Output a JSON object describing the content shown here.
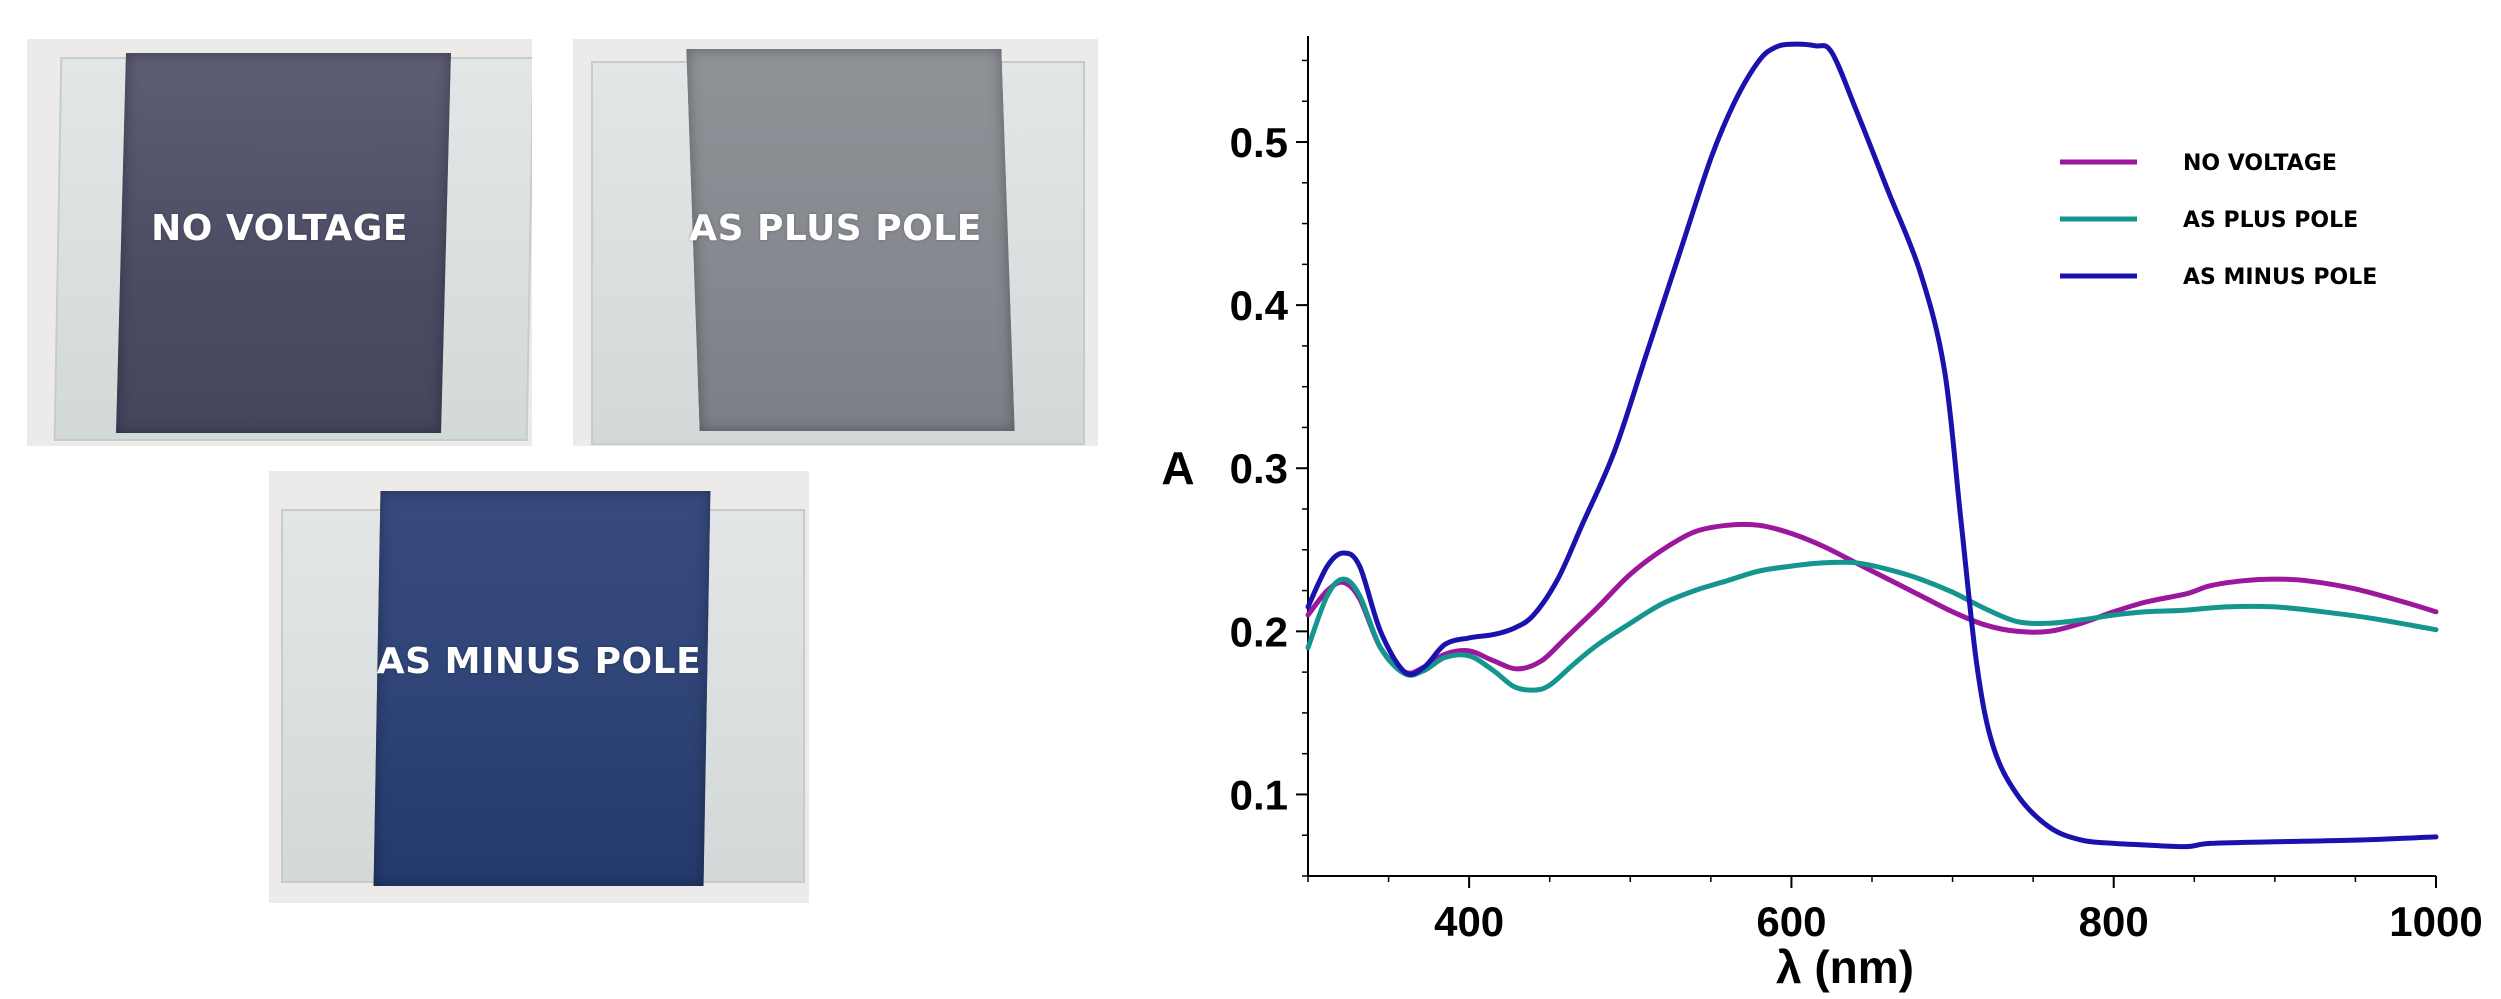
{
  "photos": [
    {
      "caption": "NO VOLTAGE",
      "cell_color": "#4f5067"
    },
    {
      "caption": "AS PLUS POLE",
      "cell_color": "#878a90"
    },
    {
      "caption": "AS MINUS POLE",
      "cell_color": "#2f4476"
    }
  ],
  "chart_data": {
    "type": "line",
    "title": "",
    "xlabel": "λ (nm)",
    "ylabel": "A",
    "xlim": [
      300,
      1000
    ],
    "ylim": [
      0.05,
      0.565
    ],
    "x_ticks": [
      400,
      600,
      800,
      1000
    ],
    "y_ticks": [
      0.1,
      0.2,
      0.3,
      0.4,
      0.5
    ],
    "x_tick_labels": [
      "400",
      "600",
      "800",
      "1000"
    ],
    "y_tick_labels": [
      "0.1",
      "0.2",
      "0.3",
      "0.4",
      "0.5"
    ],
    "grid": false,
    "legend_position": "top-right",
    "series": [
      {
        "name": "NO VOLTAGE",
        "color": "#9b179b",
        "points": [
          [
            300,
            0.21
          ],
          [
            312,
            0.225
          ],
          [
            322,
            0.23
          ],
          [
            332,
            0.22
          ],
          [
            345,
            0.19
          ],
          [
            360,
            0.175
          ],
          [
            372,
            0.178
          ],
          [
            385,
            0.186
          ],
          [
            400,
            0.188
          ],
          [
            415,
            0.182
          ],
          [
            430,
            0.177
          ],
          [
            445,
            0.182
          ],
          [
            460,
            0.196
          ],
          [
            480,
            0.215
          ],
          [
            500,
            0.235
          ],
          [
            520,
            0.25
          ],
          [
            540,
            0.261
          ],
          [
            560,
            0.265
          ],
          [
            580,
            0.265
          ],
          [
            600,
            0.26
          ],
          [
            620,
            0.252
          ],
          [
            640,
            0.242
          ],
          [
            660,
            0.232
          ],
          [
            680,
            0.222
          ],
          [
            700,
            0.212
          ],
          [
            720,
            0.204
          ],
          [
            740,
            0.2
          ],
          [
            760,
            0.2
          ],
          [
            780,
            0.205
          ],
          [
            800,
            0.212
          ],
          [
            820,
            0.218
          ],
          [
            845,
            0.223
          ],
          [
            860,
            0.228
          ],
          [
            880,
            0.231
          ],
          [
            900,
            0.232
          ],
          [
            920,
            0.231
          ],
          [
            950,
            0.226
          ],
          [
            980,
            0.218
          ],
          [
            1000,
            0.212
          ]
        ]
      },
      {
        "name": "AS PLUS POLE",
        "color": "#14958e",
        "points": [
          [
            300,
            0.19
          ],
          [
            312,
            0.222
          ],
          [
            322,
            0.232
          ],
          [
            332,
            0.222
          ],
          [
            345,
            0.19
          ],
          [
            360,
            0.174
          ],
          [
            372,
            0.176
          ],
          [
            385,
            0.184
          ],
          [
            400,
            0.185
          ],
          [
            415,
            0.176
          ],
          [
            428,
            0.166
          ],
          [
            440,
            0.164
          ],
          [
            450,
            0.167
          ],
          [
            465,
            0.18
          ],
          [
            480,
            0.192
          ],
          [
            500,
            0.205
          ],
          [
            520,
            0.217
          ],
          [
            540,
            0.225
          ],
          [
            560,
            0.231
          ],
          [
            580,
            0.237
          ],
          [
            600,
            0.24
          ],
          [
            620,
            0.242
          ],
          [
            640,
            0.242
          ],
          [
            660,
            0.238
          ],
          [
            680,
            0.232
          ],
          [
            700,
            0.224
          ],
          [
            720,
            0.214
          ],
          [
            740,
            0.206
          ],
          [
            760,
            0.205
          ],
          [
            780,
            0.207
          ],
          [
            800,
            0.21
          ],
          [
            820,
            0.212
          ],
          [
            845,
            0.213
          ],
          [
            870,
            0.215
          ],
          [
            900,
            0.215
          ],
          [
            930,
            0.212
          ],
          [
            960,
            0.208
          ],
          [
            1000,
            0.201
          ]
        ]
      },
      {
        "name": "AS MINUS POLE",
        "color": "#1a12ad",
        "points": [
          [
            300,
            0.215
          ],
          [
            312,
            0.24
          ],
          [
            322,
            0.248
          ],
          [
            332,
            0.24
          ],
          [
            345,
            0.2
          ],
          [
            360,
            0.175
          ],
          [
            372,
            0.178
          ],
          [
            385,
            0.192
          ],
          [
            400,
            0.196
          ],
          [
            415,
            0.198
          ],
          [
            428,
            0.202
          ],
          [
            440,
            0.21
          ],
          [
            455,
            0.232
          ],
          [
            470,
            0.265
          ],
          [
            490,
            0.31
          ],
          [
            510,
            0.37
          ],
          [
            530,
            0.43
          ],
          [
            550,
            0.49
          ],
          [
            565,
            0.525
          ],
          [
            580,
            0.55
          ],
          [
            590,
            0.558
          ],
          [
            600,
            0.56
          ],
          [
            615,
            0.559
          ],
          [
            625,
            0.555
          ],
          [
            640,
            0.52
          ],
          [
            660,
            0.47
          ],
          [
            680,
            0.42
          ],
          [
            695,
            0.36
          ],
          [
            705,
            0.27
          ],
          [
            715,
            0.18
          ],
          [
            725,
            0.13
          ],
          [
            740,
            0.1
          ],
          [
            760,
            0.08
          ],
          [
            780,
            0.072
          ],
          [
            800,
            0.07
          ],
          [
            820,
            0.069
          ],
          [
            845,
            0.068
          ],
          [
            860,
            0.07
          ],
          [
            900,
            0.071
          ],
          [
            950,
            0.072
          ],
          [
            1000,
            0.074
          ]
        ]
      }
    ]
  }
}
